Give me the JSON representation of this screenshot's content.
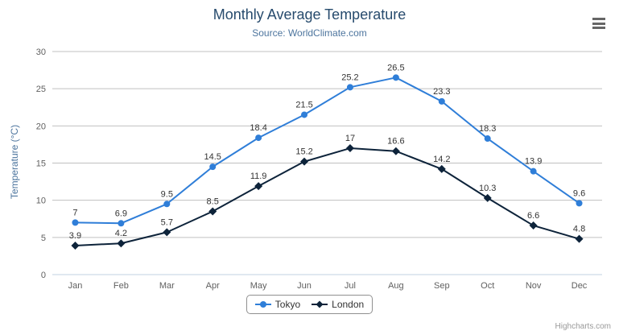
{
  "header": {
    "title": "Monthly Average Temperature",
    "subtitle": "Source: WorldClimate.com"
  },
  "icons": {
    "menu": "hamburger-menu-icon"
  },
  "chart_data": {
    "type": "line",
    "categories": [
      "Jan",
      "Feb",
      "Mar",
      "Apr",
      "May",
      "Jun",
      "Jul",
      "Aug",
      "Sep",
      "Oct",
      "Nov",
      "Dec"
    ],
    "series": [
      {
        "name": "Tokyo",
        "color": "#2f7ed8",
        "marker": "circle",
        "values": [
          7,
          6.9,
          9.5,
          14.5,
          18.4,
          21.5,
          25.2,
          26.5,
          23.3,
          18.3,
          13.9,
          9.6
        ]
      },
      {
        "name": "London",
        "color": "#0d233a",
        "marker": "diamond",
        "values": [
          3.9,
          4.2,
          5.7,
          8.5,
          11.9,
          15.2,
          17,
          16.6,
          14.2,
          10.3,
          6.6,
          4.8
        ]
      }
    ],
    "title": "Monthly Average Temperature",
    "subtitle": "Source: WorldClimate.com",
    "xlabel": "",
    "ylabel": "Temperature (°C)",
    "ylim": [
      0,
      30
    ],
    "yticks": [
      0,
      5,
      10,
      15,
      20,
      25,
      30
    ],
    "grid": true,
    "data_labels": true,
    "legend_position": "bottom"
  },
  "credits": {
    "text": "Highcharts.com"
  }
}
